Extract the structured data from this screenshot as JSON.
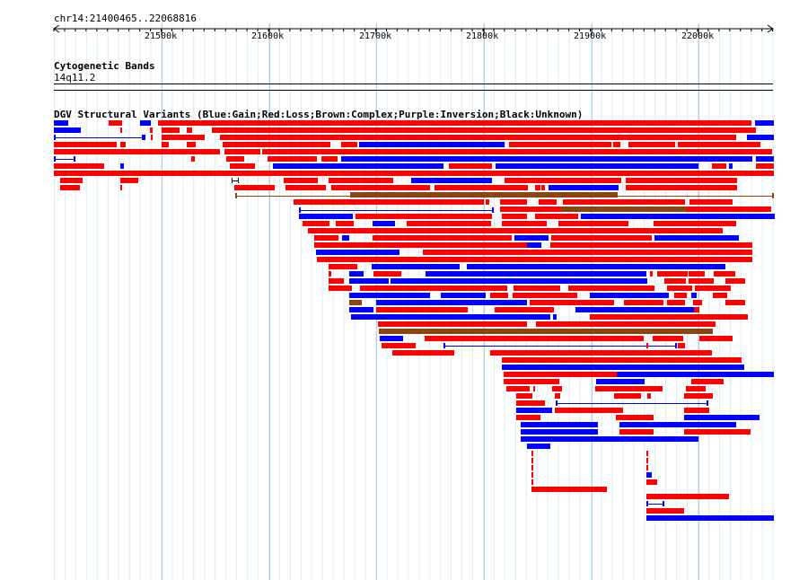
{
  "region_label": "chr14:21400465..22068816",
  "ruler": {
    "ticks": [
      "21500k",
      "21600k",
      "21700k",
      "21800k",
      "21900k",
      "22000k"
    ]
  },
  "cytoband_track": {
    "title": "Cytogenetic Bands",
    "band_label": "14q11.2"
  },
  "variant_track": {
    "title": "DGV Structural Variants (Blue:Gain;Red:Loss;Brown:Complex;Purple:Inversion;Black:Unknown)"
  },
  "colors": {
    "gain": "#0000ff",
    "loss": "#ff0000",
    "complex": "#8b4513",
    "unknown": "#000000",
    "grid_minor": "#d8ecf8",
    "grid_major": "#a8d0ec"
  }
}
